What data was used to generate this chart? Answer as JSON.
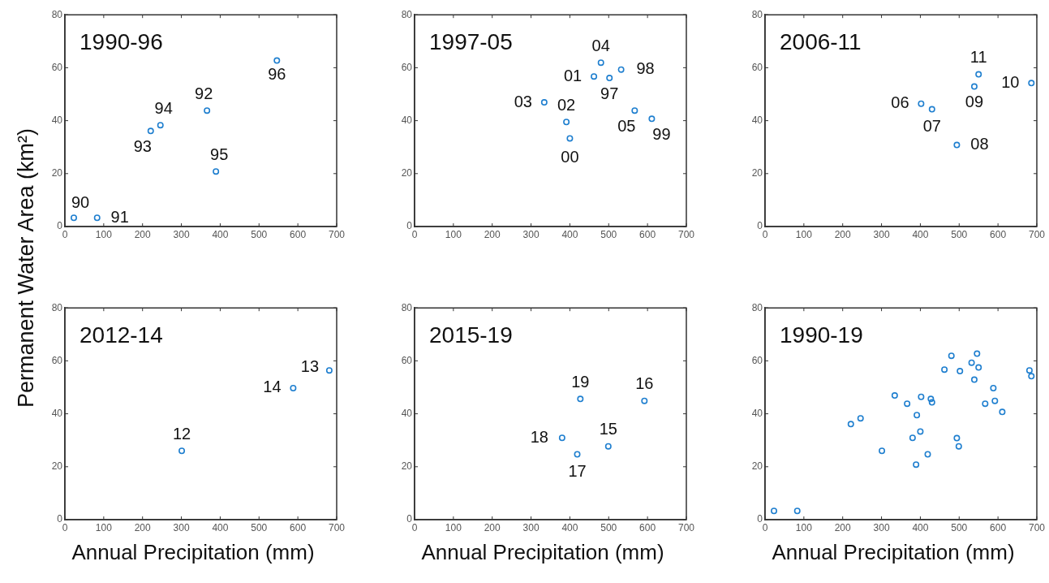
{
  "chart_data": [
    {
      "type": "scatter",
      "title": "1990-96",
      "ylabel": "Permanent Water Area (km²)",
      "color": "#1f7fcf",
      "marker": "circle",
      "xlim": [
        0,
        700
      ],
      "ylim": [
        0,
        80
      ],
      "xticks": [
        0,
        100,
        200,
        300,
        400,
        500,
        600,
        700
      ],
      "yticks": [
        0,
        20,
        40,
        60,
        80
      ],
      "x": [
        23,
        83,
        221,
        246,
        366,
        389,
        546
      ],
      "values": [
        3.3,
        3.3,
        36.1,
        38.3,
        43.8,
        20.8,
        62.7
      ],
      "annotations": [
        {
          "text": "90",
          "x": 23,
          "y": 3.3
        },
        {
          "text": "91",
          "x": 83,
          "y": 3.3
        },
        {
          "text": "93",
          "x": 221,
          "y": 36.1
        },
        {
          "text": "94",
          "x": 246,
          "y": 38.3
        },
        {
          "text": "92",
          "x": 366,
          "y": 43.8
        },
        {
          "text": "95",
          "x": 389,
          "y": 20.8
        },
        {
          "text": "96",
          "x": 546,
          "y": 62.7
        }
      ]
    },
    {
      "type": "scatter",
      "title": "1997-05",
      "color": "#1f7fcf",
      "marker": "circle",
      "xlim": [
        0,
        700
      ],
      "ylim": [
        0,
        80
      ],
      "xticks": [
        0,
        100,
        200,
        300,
        400,
        500,
        600,
        700
      ],
      "yticks": [
        0,
        20,
        40,
        60,
        80
      ],
      "x": [
        334,
        391,
        400,
        462,
        480,
        502,
        532,
        567,
        611
      ],
      "values": [
        46.9,
        39.5,
        33.3,
        56.7,
        61.9,
        56.1,
        59.3,
        43.8,
        40.7
      ],
      "annotations": [
        {
          "text": "03",
          "x": 334,
          "y": 46.9
        },
        {
          "text": "02",
          "x": 391,
          "y": 39.5
        },
        {
          "text": "00",
          "x": 400,
          "y": 33.3
        },
        {
          "text": "01",
          "x": 462,
          "y": 56.7
        },
        {
          "text": "04",
          "x": 480,
          "y": 61.9
        },
        {
          "text": "97",
          "x": 502,
          "y": 56.1
        },
        {
          "text": "98",
          "x": 532,
          "y": 59.3
        },
        {
          "text": "05",
          "x": 567,
          "y": 43.8
        },
        {
          "text": "99",
          "x": 611,
          "y": 40.7
        }
      ]
    },
    {
      "type": "scatter",
      "title": "2006-11",
      "color": "#1f7fcf",
      "marker": "circle",
      "xlim": [
        0,
        700
      ],
      "ylim": [
        0,
        80
      ],
      "xticks": [
        0,
        100,
        200,
        300,
        400,
        500,
        600,
        700
      ],
      "yticks": [
        0,
        20,
        40,
        60,
        80
      ],
      "x": [
        402,
        430,
        494,
        539,
        550,
        686
      ],
      "values": [
        46.4,
        44.3,
        30.8,
        52.9,
        57.5,
        54.2
      ],
      "annotations": [
        {
          "text": "06",
          "x": 402,
          "y": 46.4
        },
        {
          "text": "07",
          "x": 430,
          "y": 44.3
        },
        {
          "text": "08",
          "x": 494,
          "y": 30.8
        },
        {
          "text": "09",
          "x": 539,
          "y": 52.9
        },
        {
          "text": "11",
          "x": 550,
          "y": 57.5
        },
        {
          "text": "10",
          "x": 686,
          "y": 54.2
        }
      ]
    },
    {
      "type": "scatter",
      "title": "2012-14",
      "xlabel": "Annual Precipitation (mm)",
      "color": "#1f7fcf",
      "marker": "circle",
      "xlim": [
        0,
        700
      ],
      "ylim": [
        0,
        80
      ],
      "xticks": [
        0,
        100,
        200,
        300,
        400,
        500,
        600,
        700
      ],
      "yticks": [
        0,
        20,
        40,
        60,
        80
      ],
      "x": [
        301,
        588,
        681
      ],
      "values": [
        26,
        49.7,
        56.4
      ],
      "annotations": [
        {
          "text": "12",
          "x": 301,
          "y": 26
        },
        {
          "text": "14",
          "x": 588,
          "y": 49.7
        },
        {
          "text": "13",
          "x": 681,
          "y": 56.4
        }
      ]
    },
    {
      "type": "scatter",
      "title": "2015-19",
      "xlabel": "Annual Precipitation (mm)",
      "color": "#1f7fcf",
      "marker": "circle",
      "xlim": [
        0,
        700
      ],
      "ylim": [
        0,
        80
      ],
      "xticks": [
        0,
        100,
        200,
        300,
        400,
        500,
        600,
        700
      ],
      "yticks": [
        0,
        20,
        40,
        60,
        80
      ],
      "x": [
        427,
        592,
        380,
        419,
        499
      ],
      "values": [
        45.6,
        44.9,
        30.9,
        24.7,
        27.7
      ],
      "annotations": [
        {
          "text": "19",
          "x": 427,
          "y": 45.6
        },
        {
          "text": "16",
          "x": 592,
          "y": 44.9
        },
        {
          "text": "18",
          "x": 380,
          "y": 30.9
        },
        {
          "text": "17",
          "x": 419,
          "y": 24.7
        },
        {
          "text": "15",
          "x": 499,
          "y": 27.7
        }
      ]
    },
    {
      "type": "scatter",
      "title": "1990-19",
      "xlabel": "Annual Precipitation (mm)",
      "color": "#1f7fcf",
      "marker": "circle",
      "xlim": [
        0,
        700
      ],
      "ylim": [
        0,
        80
      ],
      "xticks": [
        0,
        100,
        200,
        300,
        400,
        500,
        600,
        700
      ],
      "yticks": [
        0,
        20,
        40,
        60,
        80
      ],
      "x": [
        23,
        83,
        221,
        246,
        366,
        389,
        546,
        334,
        391,
        400,
        462,
        480,
        502,
        532,
        567,
        611,
        402,
        430,
        494,
        539,
        550,
        686,
        301,
        588,
        681,
        427,
        592,
        380,
        419,
        499
      ],
      "values": [
        3.3,
        3.3,
        36.1,
        38.3,
        43.8,
        20.8,
        62.7,
        46.9,
        39.5,
        33.3,
        56.7,
        61.9,
        56.1,
        59.3,
        43.8,
        40.7,
        46.4,
        44.3,
        30.8,
        52.9,
        57.5,
        54.2,
        26,
        49.7,
        56.4,
        45.6,
        44.9,
        30.9,
        24.7,
        27.7
      ]
    }
  ]
}
